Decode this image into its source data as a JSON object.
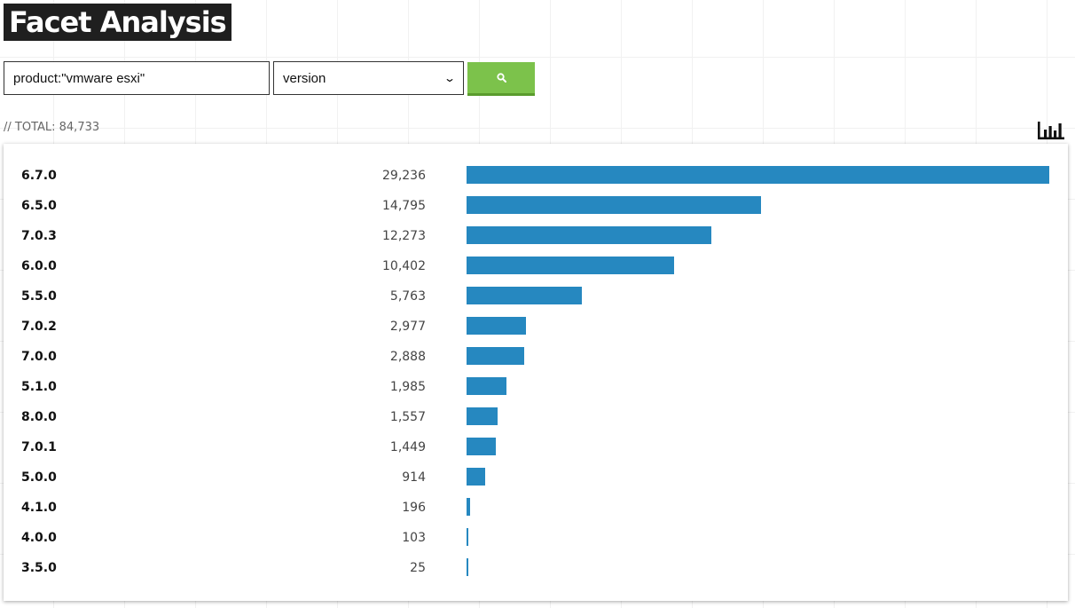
{
  "header": {
    "title": "Facet Analysis"
  },
  "search": {
    "query": "product:\"vmware esxi\"",
    "facet": "version"
  },
  "summary": {
    "total_text": "// TOTAL: 84,733"
  },
  "colors": {
    "bar": "#2688c0",
    "button": "#7cc24b",
    "title_bg": "#1f1f1f"
  },
  "icons": {
    "search_button": "search-icon",
    "chart_toggle": "bar-chart-icon"
  },
  "chart_data": {
    "type": "bar",
    "orientation": "horizontal",
    "title": "",
    "xlabel": "",
    "ylabel": "",
    "categories": [
      "6.7.0",
      "6.5.0",
      "7.0.3",
      "6.0.0",
      "5.5.0",
      "7.0.2",
      "7.0.0",
      "5.1.0",
      "8.0.0",
      "7.0.1",
      "5.0.0",
      "4.1.0",
      "4.0.0",
      "3.5.0"
    ],
    "values": [
      29236,
      14795,
      12273,
      10402,
      5763,
      2977,
      2888,
      1985,
      1557,
      1449,
      914,
      196,
      103,
      25
    ],
    "value_labels": [
      "29,236",
      "14,795",
      "12,273",
      "10,402",
      "5,763",
      "2,977",
      "2,888",
      "1,985",
      "1,557",
      "1,449",
      "914",
      "196",
      "103",
      "25"
    ],
    "xlim": [
      0,
      29236
    ],
    "grid": false
  }
}
